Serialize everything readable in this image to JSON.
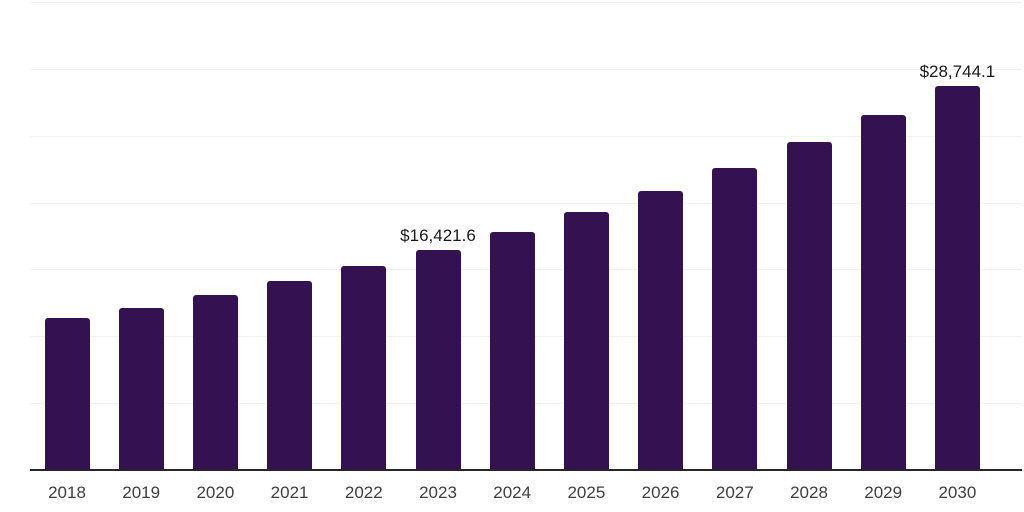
{
  "chart_data": {
    "type": "bar",
    "title": "",
    "xlabel": "",
    "ylabel": "",
    "categories": [
      "2018",
      "2019",
      "2020",
      "2021",
      "2022",
      "2023",
      "2024",
      "2025",
      "2026",
      "2027",
      "2028",
      "2029",
      "2030"
    ],
    "values": [
      11350,
      12100,
      13100,
      14150,
      15250,
      16421.6,
      17790,
      19270,
      20880,
      22620,
      24500,
      26540,
      28744.1
    ],
    "point_labels": [
      null,
      null,
      null,
      null,
      null,
      "$16,421.6",
      null,
      null,
      null,
      null,
      null,
      null,
      "$28,744.1"
    ],
    "ylim": [
      0,
      35000
    ],
    "grid_step": 5000,
    "grid": true,
    "y_tick_labels_visible": false,
    "legend": false,
    "colors": {
      "bar": "#341150",
      "gridline": "#f3f3f3",
      "axis_line": "#262626",
      "x_tick_label": "#404040",
      "value_label": "#1a1a1a",
      "background": "#ffffff"
    }
  }
}
